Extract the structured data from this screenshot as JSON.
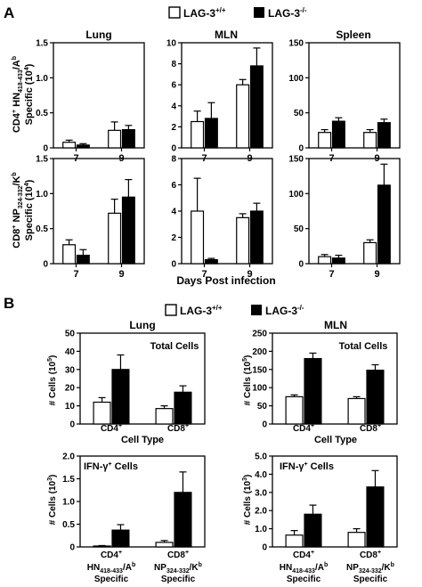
{
  "panel_a": {
    "label": "A",
    "legend": {
      "wt": "LAG-3",
      "wt_sup": "+/+",
      "ko": "LAG-3",
      "ko_sup": "-/-"
    },
    "column_titles": [
      "Lung",
      "MLN",
      "Spleen"
    ],
    "row_labels": [
      {
        "line1_a": "CD4",
        "line1_sup": "+",
        "line1_b": " HN",
        "line1_sub": "418-433",
        "line1_c": "/A",
        "line1_sup2": "b",
        "line2": "Specific (10",
        "line2_sup": "4",
        "line2_end": ")"
      },
      {
        "line1_a": "CD8",
        "line1_sup": "+",
        "line1_b": " NP",
        "line1_sub": "324-332",
        "line1_c": "/K",
        "line1_sup2": "b",
        "line2": "Specific (10",
        "line2_sup": "4",
        "line2_end": ")"
      }
    ],
    "xlabel": "Days Post infection"
  },
  "panel_b": {
    "label": "B",
    "legend": {
      "wt": "LAG-3",
      "wt_sup": "+/+",
      "ko": "LAG-3",
      "ko_sup": "-/-"
    },
    "column_titles": [
      "Lung",
      "MLN"
    ],
    "ylabel_main": "# Cells (10",
    "ylabel_sup": "5",
    "ylabel_end": ")",
    "ylabel_main2": "# Cells (10",
    "ylabel_sup2": "3",
    "ylabel_end2": ")",
    "cell_type_label": "Cell Type",
    "inset_top": "Total Cells",
    "inset_bottom_a": "IFN-γ",
    "inset_bottom_sup": "+",
    "inset_bottom_b": " Cells",
    "x_top": [
      {
        "a": "CD4",
        "sup": "+"
      },
      {
        "a": "CD8",
        "sup": "+"
      }
    ],
    "x_bottom": [
      {
        "a": "CD4",
        "sup": "+",
        "l2a": "HN",
        "l2sub": "418-433",
        "l2b": "/A",
        "l2sup": "b",
        "l3": "Specific"
      },
      {
        "a": "CD8",
        "sup": "+",
        "l2a": "NP",
        "l2sub": "324-332",
        "l2b": "/K",
        "l2sup": "b",
        "l3": "Specific"
      }
    ]
  },
  "chart_data": [
    {
      "panel": "A",
      "type": "bar",
      "title": "Lung",
      "row": "CD4+ HN418-433/Ab",
      "categories": [
        "7",
        "9"
      ],
      "ylim": [
        0,
        1.5
      ],
      "yticks": [
        0,
        0.5,
        1.0,
        1.5
      ],
      "ytick_labels": [
        "0",
        "0.5",
        "1.0",
        "1.5"
      ],
      "series": [
        {
          "name": "LAG-3+/+",
          "values": [
            0.08,
            0.25
          ],
          "errors": [
            0.03,
            0.12
          ]
        },
        {
          "name": "LAG-3-/-",
          "values": [
            0.04,
            0.26
          ],
          "errors": [
            0.02,
            0.06
          ]
        }
      ]
    },
    {
      "panel": "A",
      "type": "bar",
      "title": "MLN",
      "row": "CD4+ HN418-433/Ab",
      "categories": [
        "7",
        "9"
      ],
      "ylim": [
        0,
        10
      ],
      "yticks": [
        0,
        2,
        4,
        6,
        8,
        10
      ],
      "ytick_labels": [
        "0",
        "2",
        "4",
        "6",
        "8",
        "10"
      ],
      "series": [
        {
          "name": "LAG-3+/+",
          "values": [
            2.5,
            6.0
          ],
          "errors": [
            1.0,
            0.5
          ]
        },
        {
          "name": "LAG-3-/-",
          "values": [
            2.8,
            7.8
          ],
          "errors": [
            1.5,
            1.7
          ]
        }
      ]
    },
    {
      "panel": "A",
      "type": "bar",
      "title": "Spleen",
      "row": "CD4+ HN418-433/Ab",
      "categories": [
        "7",
        "9"
      ],
      "ylim": [
        0,
        150
      ],
      "yticks": [
        0,
        50,
        100,
        150
      ],
      "ytick_labels": [
        "0",
        "50",
        "100",
        "150"
      ],
      "series": [
        {
          "name": "LAG-3+/+",
          "values": [
            22,
            22
          ],
          "errors": [
            4,
            4
          ]
        },
        {
          "name": "LAG-3-/-",
          "values": [
            38,
            36
          ],
          "errors": [
            5,
            5
          ]
        }
      ]
    },
    {
      "panel": "A",
      "type": "bar",
      "title": "Lung",
      "row": "CD8+ NP324-332/Kb",
      "categories": [
        "7",
        "9"
      ],
      "ylim": [
        0,
        1.5
      ],
      "yticks": [
        0,
        0.5,
        1.0,
        1.5
      ],
      "ytick_labels": [
        "0",
        "0.5",
        "1.0",
        "1.5"
      ],
      "series": [
        {
          "name": "LAG-3+/+",
          "values": [
            0.27,
            0.72
          ],
          "errors": [
            0.07,
            0.2
          ]
        },
        {
          "name": "LAG-3-/-",
          "values": [
            0.12,
            0.95
          ],
          "errors": [
            0.08,
            0.25
          ]
        }
      ]
    },
    {
      "panel": "A",
      "type": "bar",
      "title": "MLN",
      "row": "CD8+ NP324-332/Kb",
      "categories": [
        "7",
        "9"
      ],
      "ylim": [
        0,
        8
      ],
      "yticks": [
        0,
        2,
        4,
        6,
        8
      ],
      "ytick_labels": [
        "0",
        "2",
        "4",
        "6",
        "8"
      ],
      "series": [
        {
          "name": "LAG-3+/+",
          "values": [
            4.0,
            3.5
          ],
          "errors": [
            2.5,
            0.3
          ]
        },
        {
          "name": "LAG-3-/-",
          "values": [
            0.3,
            4.0
          ],
          "errors": [
            0.1,
            0.6
          ]
        }
      ]
    },
    {
      "panel": "A",
      "type": "bar",
      "title": "Spleen",
      "row": "CD8+ NP324-332/Kb",
      "categories": [
        "7",
        "9"
      ],
      "ylim": [
        0,
        150
      ],
      "yticks": [
        0,
        50,
        100,
        150
      ],
      "ytick_labels": [
        "0",
        "50",
        "100",
        "150"
      ],
      "series": [
        {
          "name": "LAG-3+/+",
          "values": [
            10,
            30
          ],
          "errors": [
            3,
            4
          ]
        },
        {
          "name": "LAG-3-/-",
          "values": [
            8,
            112
          ],
          "errors": [
            4,
            30
          ]
        }
      ]
    },
    {
      "panel": "B",
      "type": "bar",
      "title": "Lung",
      "row": "Total Cells",
      "categories": [
        "CD4+",
        "CD8+"
      ],
      "ylim": [
        0,
        50
      ],
      "yticks": [
        0,
        10,
        20,
        30,
        40,
        50
      ],
      "ytick_labels": [
        "0",
        "10",
        "20",
        "30",
        "40",
        "50"
      ],
      "series": [
        {
          "name": "LAG-3+/+",
          "values": [
            12,
            8.5
          ],
          "errors": [
            2.5,
            1.5
          ]
        },
        {
          "name": "LAG-3-/-",
          "values": [
            30,
            17.5
          ],
          "errors": [
            8,
            3.5
          ]
        }
      ]
    },
    {
      "panel": "B",
      "type": "bar",
      "title": "MLN",
      "row": "Total Cells",
      "categories": [
        "CD4+",
        "CD8+"
      ],
      "ylim": [
        0,
        250
      ],
      "yticks": [
        0,
        50,
        100,
        150,
        200,
        250
      ],
      "ytick_labels": [
        "0",
        "50",
        "100",
        "150",
        "200",
        "250"
      ],
      "series": [
        {
          "name": "LAG-3+/+",
          "values": [
            75,
            70
          ],
          "errors": [
            5,
            5
          ]
        },
        {
          "name": "LAG-3-/-",
          "values": [
            180,
            148
          ],
          "errors": [
            15,
            15
          ]
        }
      ]
    },
    {
      "panel": "B",
      "type": "bar",
      "title": "",
      "row": "IFN-γ+ Cells",
      "categories": [
        "CD4+",
        "CD8+"
      ],
      "ylim": [
        0,
        2.0
      ],
      "yticks": [
        0,
        0.5,
        1.0,
        1.5,
        2.0
      ],
      "ytick_labels": [
        "0",
        "0.5",
        "1.0",
        "1.5",
        "2.0"
      ],
      "series": [
        {
          "name": "LAG-3+/+",
          "values": [
            0.02,
            0.1
          ],
          "errors": [
            0.01,
            0.04
          ]
        },
        {
          "name": "LAG-3-/-",
          "values": [
            0.37,
            1.2
          ],
          "errors": [
            0.12,
            0.45
          ]
        }
      ]
    },
    {
      "panel": "B",
      "type": "bar",
      "title": "",
      "row": "IFN-γ+ Cells",
      "categories": [
        "CD4+",
        "CD8+"
      ],
      "ylim": [
        0,
        5.0
      ],
      "yticks": [
        0,
        1.0,
        2.0,
        3.0,
        4.0,
        5.0
      ],
      "ytick_labels": [
        "0",
        "1.0",
        "2.0",
        "3.0",
        "4.0",
        "5.0"
      ],
      "series": [
        {
          "name": "LAG-3+/+",
          "values": [
            0.65,
            0.8
          ],
          "errors": [
            0.25,
            0.2
          ]
        },
        {
          "name": "LAG-3-/-",
          "values": [
            1.8,
            3.3
          ],
          "errors": [
            0.5,
            0.9
          ]
        }
      ]
    }
  ]
}
